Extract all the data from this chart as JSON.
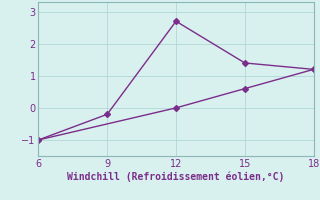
{
  "line1_x": [
    6,
    9,
    12,
    15,
    18
  ],
  "line1_y": [
    -1.0,
    -0.2,
    2.7,
    1.4,
    1.2
  ],
  "line2_x": [
    6,
    12,
    15,
    18
  ],
  "line2_y": [
    -1.0,
    0.0,
    0.6,
    1.2
  ],
  "line_color": "#7b2d8b",
  "bg_color": "#d8f0ee",
  "grid_color": "#b0d8d4",
  "xlabel": "Windchill (Refroidissement éolien,°C)",
  "xlabel_color": "#7b2d8b",
  "tick_color": "#7b2d8b",
  "spine_color": "#8ab8b8",
  "xlim": [
    6,
    18
  ],
  "ylim": [
    -1.5,
    3.3
  ],
  "xticks": [
    6,
    9,
    12,
    15,
    18
  ],
  "yticks": [
    -1,
    0,
    1,
    2,
    3
  ],
  "marker": "D",
  "markersize": 3,
  "linewidth": 1.0
}
